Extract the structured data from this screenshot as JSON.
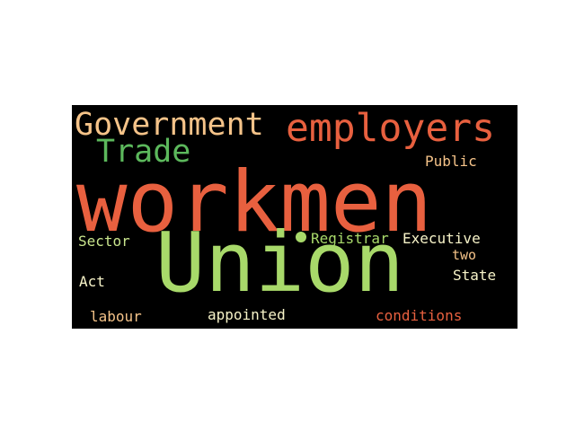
{
  "word_cloud": {
    "background": "#000000",
    "words": [
      {
        "id": "workmen",
        "text": "workmen",
        "color": "#e8603f"
      },
      {
        "id": "union",
        "text": "Union",
        "color": "#a8d96a"
      },
      {
        "id": "employers",
        "text": "employers",
        "color": "#e8603f"
      },
      {
        "id": "government",
        "text": "Government",
        "color": "#f5c389"
      },
      {
        "id": "trade",
        "text": "Trade",
        "color": "#5cb85c"
      },
      {
        "id": "public",
        "text": "Public",
        "color": "#f5c389"
      },
      {
        "id": "sector",
        "text": "Sector",
        "color": "#c9e58d"
      },
      {
        "id": "registrar",
        "text": "Registrar",
        "color": "#a8d96a"
      },
      {
        "id": "executive",
        "text": "Executive",
        "color": "#f7f3c8"
      },
      {
        "id": "two",
        "text": "two",
        "color": "#f5c389"
      },
      {
        "id": "state",
        "text": "State",
        "color": "#f7f3c8"
      },
      {
        "id": "act",
        "text": "Act",
        "color": "#f7f3c8"
      },
      {
        "id": "labour",
        "text": "labour",
        "color": "#f5c389"
      },
      {
        "id": "appointed",
        "text": "appointed",
        "color": "#f7f3c8"
      },
      {
        "id": "conditions",
        "text": "conditions",
        "color": "#e8603f"
      }
    ],
    "dot_color": "#a8d96a"
  }
}
